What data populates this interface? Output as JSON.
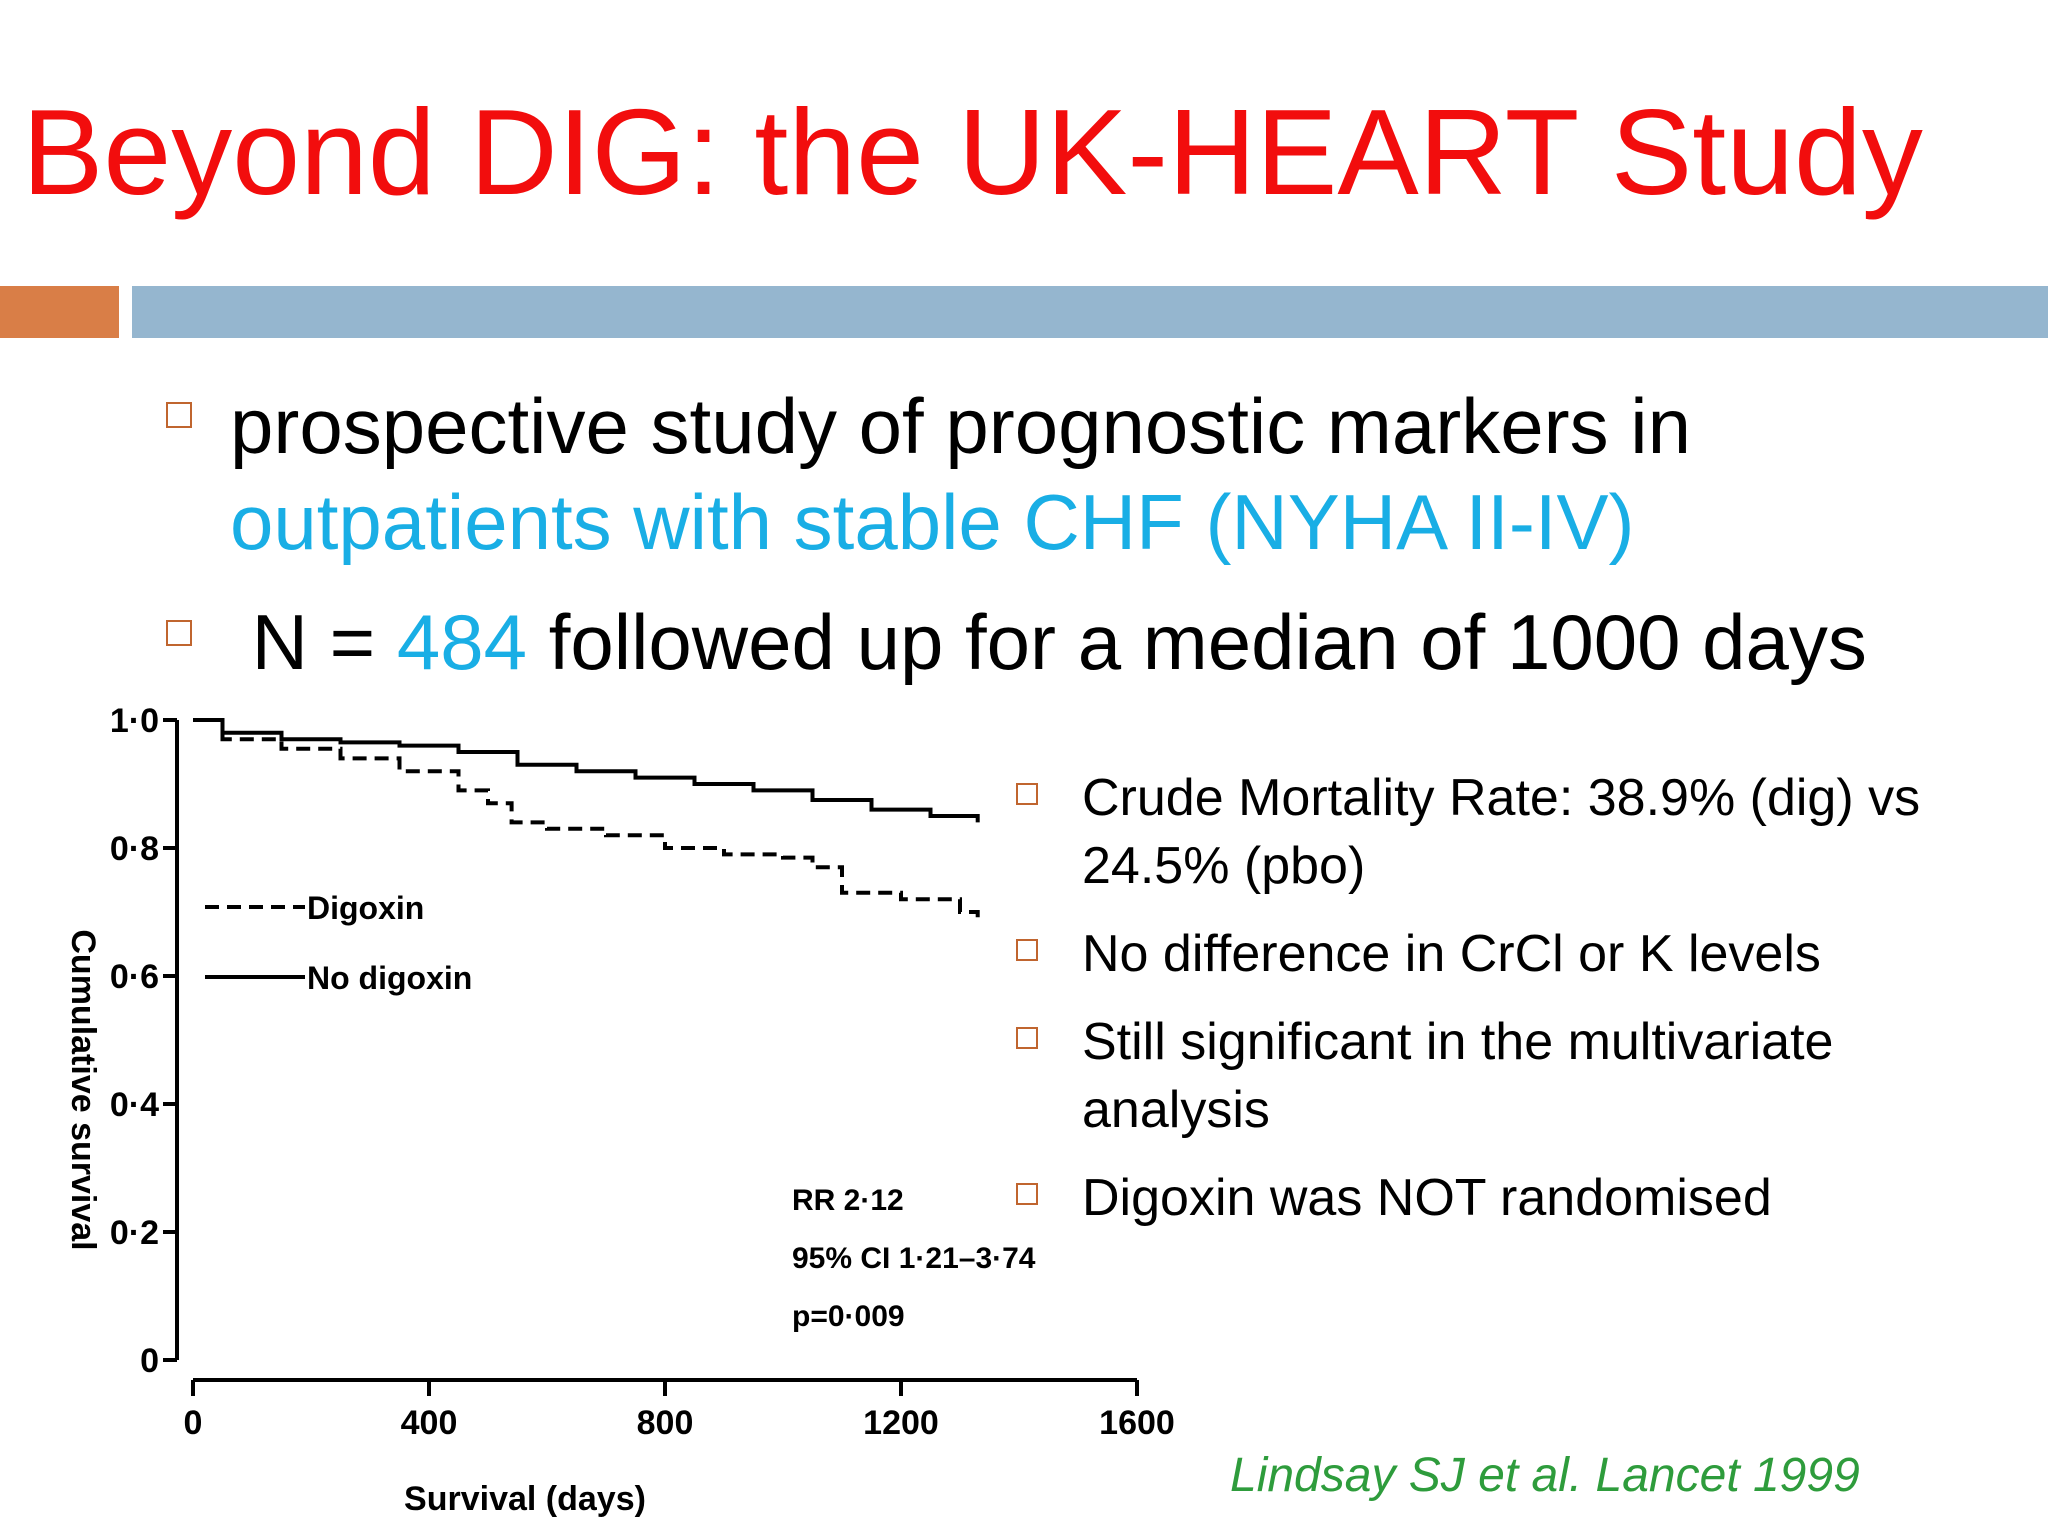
{
  "slide": {
    "title": "Beyond DIG: the UK-HEART Study",
    "bullets": [
      {
        "line1": "prospective  study  of prognostic markers in",
        "line2": "outpatients with  stable  CHF (NYHA II-IV)"
      },
      {
        "prefix": " N = ",
        "highlight": "484",
        "suffix": " followed up for a median of 1000 days"
      }
    ],
    "right_bullets": [
      {
        "line1": "Crude Mortality Rate: 38.9% (dig) vs",
        "line2": "24.5% (pbo)"
      },
      {
        "line1": "No difference in CrCl or K levels"
      },
      {
        "line1": "Still significant in the multivariate",
        "line2": "analysis"
      },
      {
        "line1": "Digoxin was NOT randomised"
      }
    ],
    "citation": "Lindsay SJ et al. Lancet 1999",
    "colors": {
      "title": "#f20d0d",
      "highlight": "#19aee5",
      "bullet_box": "#c0652f",
      "citation": "#2e9c3c",
      "bar_orange": "#d97e47",
      "bar_blue": "#95b6cf"
    }
  },
  "chart_data": {
    "type": "line",
    "title": "",
    "xlabel": "Survival (days)",
    "ylabel": "Cumulative survival",
    "xlim": [
      0,
      1600
    ],
    "ylim": [
      0,
      1.0
    ],
    "xticks": [
      0,
      400,
      800,
      1200,
      1600
    ],
    "xtick_labels": [
      "0",
      "400",
      "800",
      "1200",
      "1600"
    ],
    "yticks": [
      0,
      0.2,
      0.4,
      0.6,
      0.8,
      1.0
    ],
    "ytick_labels": [
      "0",
      "0·2",
      "0·4",
      "0·6",
      "0·8",
      "1·0"
    ],
    "grid": false,
    "legend": "bottom-left",
    "series": [
      {
        "name": "Digoxin",
        "style": "dashed",
        "points": [
          [
            0,
            1.0
          ],
          [
            50,
            0.97
          ],
          [
            150,
            0.955
          ],
          [
            250,
            0.94
          ],
          [
            350,
            0.92
          ],
          [
            450,
            0.89
          ],
          [
            500,
            0.87
          ],
          [
            540,
            0.84
          ],
          [
            600,
            0.83
          ],
          [
            700,
            0.82
          ],
          [
            800,
            0.8
          ],
          [
            900,
            0.79
          ],
          [
            1000,
            0.785
          ],
          [
            1050,
            0.77
          ],
          [
            1100,
            0.73
          ],
          [
            1200,
            0.72
          ],
          [
            1300,
            0.7
          ],
          [
            1330,
            0.69
          ]
        ]
      },
      {
        "name": "No digoxin",
        "style": "solid",
        "points": [
          [
            0,
            1.0
          ],
          [
            50,
            0.98
          ],
          [
            150,
            0.97
          ],
          [
            250,
            0.965
          ],
          [
            350,
            0.96
          ],
          [
            450,
            0.95
          ],
          [
            550,
            0.93
          ],
          [
            650,
            0.92
          ],
          [
            750,
            0.91
          ],
          [
            850,
            0.9
          ],
          [
            950,
            0.89
          ],
          [
            1050,
            0.875
          ],
          [
            1150,
            0.86
          ],
          [
            1250,
            0.85
          ],
          [
            1330,
            0.84
          ]
        ]
      }
    ],
    "legend_labels": [
      "Digoxin",
      "No digoxin"
    ],
    "annotation": [
      "RR 2·12",
      "95% CI 1·21–3·74",
      "p=0·009"
    ]
  }
}
